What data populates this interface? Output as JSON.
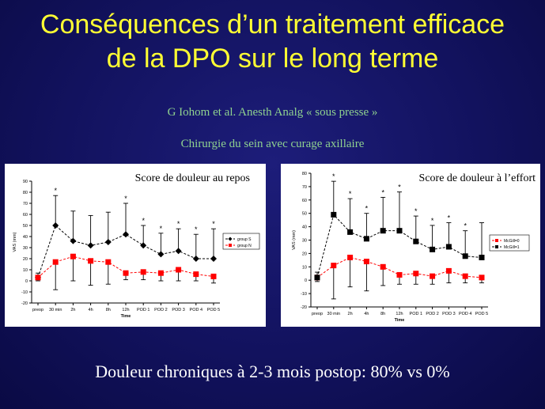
{
  "slide": {
    "title": "Conséquences d’un traitement efficace de la DPO sur le long terme",
    "reference": "G Iohom et al. Anesth Analg « sous presse »",
    "subtitle": "Chirurgie du sein avec curage axillaire",
    "conclusion": "Douleur chroniques à 2-3 mois postop: 80% vs 0%"
  },
  "chart_data": [
    {
      "type": "line",
      "title": "Score de douleur au repos",
      "xlabel": "Time",
      "ylabel": "VAS (mm)",
      "ylim": [
        -20,
        90
      ],
      "yticks": [
        -20,
        -10,
        0,
        10,
        20,
        30,
        40,
        50,
        60,
        70,
        80,
        90
      ],
      "categories": [
        "preop",
        "30 min",
        "2h",
        "4h",
        "8h",
        "12h",
        "POD 1",
        "POD 2",
        "POD 3",
        "POD 4",
        "POD 5"
      ],
      "legend_position": "right",
      "series": [
        {
          "name": "group S",
          "color": "#000000",
          "marker": "diamond",
          "values": [
            3,
            50,
            36,
            32,
            35,
            42,
            32,
            24,
            27,
            20,
            20
          ],
          "error_upper": [
            4,
            27,
            27,
            27,
            27,
            28,
            18,
            19,
            20,
            22,
            27
          ]
        },
        {
          "name": "group N",
          "color": "#ff0000",
          "marker": "square",
          "values": [
            3,
            17,
            22,
            18,
            17,
            7,
            8,
            7,
            10,
            6,
            4
          ],
          "error_lower": [
            3,
            25,
            22,
            22,
            20,
            6,
            7,
            7,
            10,
            6,
            6
          ]
        }
      ],
      "significance_markers": [
        "30 min",
        "12h",
        "POD 1",
        "POD 2",
        "POD 3",
        "POD 4",
        "POD 5"
      ],
      "significance_symbol": "*"
    },
    {
      "type": "line",
      "title": "Score de douleur à l’effort",
      "xlabel": "Time",
      "ylabel": "VAS (mm)",
      "ylim": [
        -20,
        80
      ],
      "yticks": [
        -20,
        -10,
        0,
        10,
        20,
        30,
        40,
        50,
        60,
        70,
        80
      ],
      "categories": [
        "preop",
        "30 min",
        "2h",
        "4h",
        "8h",
        "12h",
        "POD 1",
        "POD 2",
        "POD 3",
        "POD 4",
        "POD 5"
      ],
      "legend_position": "right",
      "series": [
        {
          "name": "McGill=0",
          "color": "#ff0000",
          "marker": "square",
          "values": [
            2,
            11,
            17,
            14,
            10,
            4,
            5,
            3,
            7,
            3,
            2
          ],
          "error_lower": [
            3,
            25,
            22,
            22,
            14,
            7,
            8,
            6,
            9,
            5,
            4
          ]
        },
        {
          "name": "McGill=1",
          "color": "#000000",
          "marker": "square",
          "values": [
            2,
            49,
            36,
            31,
            37,
            37,
            29,
            23,
            25,
            18,
            17
          ],
          "error_upper": [
            4,
            25,
            25,
            19,
            25,
            29,
            19,
            18,
            18,
            19,
            26
          ]
        }
      ],
      "significance_markers": [
        "30 min",
        "2h",
        "4h",
        "8h",
        "12h",
        "POD 1",
        "POD 2",
        "POD 3",
        "POD 4"
      ],
      "significance_symbol": "*"
    }
  ]
}
